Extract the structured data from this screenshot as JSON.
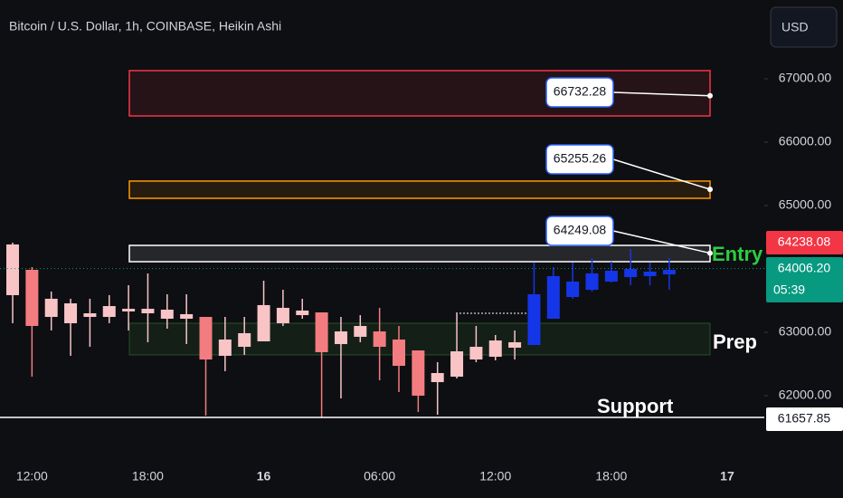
{
  "header": {
    "title": "Bitcoin / U.S. Dollar, 1h, COINBASE, Heikin Ashi",
    "currency_button": "USD"
  },
  "chart_data": {
    "type": "candlestick",
    "categories": [
      null,
      "12:00",
      null,
      null,
      null,
      null,
      null,
      "18:00",
      null,
      null,
      null,
      null,
      null,
      "16",
      null,
      null,
      null,
      null,
      null,
      "06:00",
      null,
      null,
      null,
      null,
      null,
      "12:00",
      null,
      null,
      null,
      null,
      null,
      "18:00",
      null,
      null,
      null,
      null,
      null,
      "17"
    ],
    "open": [
      63586,
      63986,
      63243,
      63143,
      63243,
      63243,
      63329,
      63300,
      63214,
      63214,
      63243,
      62629,
      62771,
      62857,
      63143,
      63271,
      63314,
      62814,
      62929,
      63014,
      62886,
      62714,
      62214,
      62300,
      62571,
      62614,
      62757,
      62800,
      63214,
      63557,
      63671,
      63800,
      63871,
      63886,
      63914,
      null,
      null,
      null
    ],
    "high": [
      64414,
      64029,
      63643,
      63529,
      63529,
      63586,
      63743,
      63929,
      63600,
      63600,
      63243,
      63243,
      63243,
      63814,
      63671,
      63529,
      63314,
      63243,
      63271,
      63386,
      63100,
      62714,
      62529,
      63314,
      63100,
      62957,
      63029,
      64100,
      64029,
      64100,
      64171,
      64114,
      64314,
      64100,
      64171,
      null,
      null,
      null
    ],
    "low": [
      63143,
      62300,
      63029,
      62629,
      62771,
      63143,
      63029,
      62843,
      63057,
      62814,
      61686,
      62386,
      62643,
      62857,
      63100,
      63214,
      61657,
      61957,
      62843,
      62243,
      62057,
      61743,
      61700,
      62271,
      62529,
      62557,
      62571,
      62800,
      63214,
      63529,
      63643,
      63786,
      63743,
      63743,
      63671,
      null,
      null,
      null
    ],
    "close": [
      64386,
      63100,
      63529,
      63457,
      63300,
      63414,
      63371,
      63371,
      63357,
      63286,
      62571,
      62886,
      62986,
      63429,
      63386,
      63343,
      62686,
      63014,
      63100,
      62771,
      62471,
      62000,
      62357,
      62700,
      62771,
      62871,
      62843,
      63600,
      63886,
      63800,
      63929,
      63971,
      64000,
      63957,
      63986,
      null,
      null,
      null
    ],
    "colors": [
      "#f8c4c6",
      "#f27c80",
      "#f8c4c6",
      "#f8c4c6",
      "#f8c4c6",
      "#f8c4c6",
      "#f8c4c6",
      "#f8c4c6",
      "#f8c4c6",
      "#f8c4c6",
      "#f27c80",
      "#f8c4c6",
      "#f8c4c6",
      "#f8c4c6",
      "#f8c4c6",
      "#f8c4c6",
      "#f27c80",
      "#f8c4c6",
      "#f8c4c6",
      "#f27c80",
      "#f27c80",
      "#f27c80",
      "#f8c4c6",
      "#f8c4c6",
      "#f8c4c6",
      "#f8c4c6",
      "#f8c4c6",
      "#1536e8",
      "#1536e8",
      "#1536e8",
      "#1536e8",
      "#1536e8",
      "#1536e8",
      "#1536e8",
      "#1536e8",
      null,
      null,
      null
    ],
    "ylim": [
      60957,
      68243
    ],
    "yticks": [
      {
        "value": 62000,
        "label": "62000.00"
      },
      {
        "value": 63000,
        "label": "63000.00"
      },
      {
        "value": 65000,
        "label": "65000.00"
      },
      {
        "value": 66000,
        "label": "66000.00"
      },
      {
        "value": 67000,
        "label": "67000.00"
      }
    ],
    "zones": [
      {
        "top": 67129,
        "bottom": 66414,
        "color": "#f23645"
      },
      {
        "top": 65386,
        "bottom": 65114,
        "color": "#ff9800"
      },
      {
        "top": 64371,
        "bottom": 64114,
        "color": "#ffffff"
      },
      {
        "top": 63143,
        "bottom": 62643,
        "color": "#4caf50"
      }
    ],
    "callouts": [
      {
        "value": 66732.28,
        "label": "66732.28"
      },
      {
        "value": 65255.26,
        "label": "65255.26"
      },
      {
        "value": 64249.08,
        "label": "64249.08"
      }
    ],
    "price_labels": [
      {
        "value": 64238.08,
        "label": "64238.08",
        "color": "#f23645"
      },
      {
        "value": 64006.2,
        "label": "64006.20",
        "color": "#089981",
        "countdown": "05:39"
      },
      {
        "value": 61657.85,
        "label": "61657.85",
        "color": "#ffffff"
      }
    ],
    "annotations": [
      {
        "text": "Entry",
        "color": "#2ecc40"
      },
      {
        "text": "Prep",
        "color": "#ffffff"
      },
      {
        "text": "Support",
        "color": "#ffffff"
      }
    ]
  }
}
